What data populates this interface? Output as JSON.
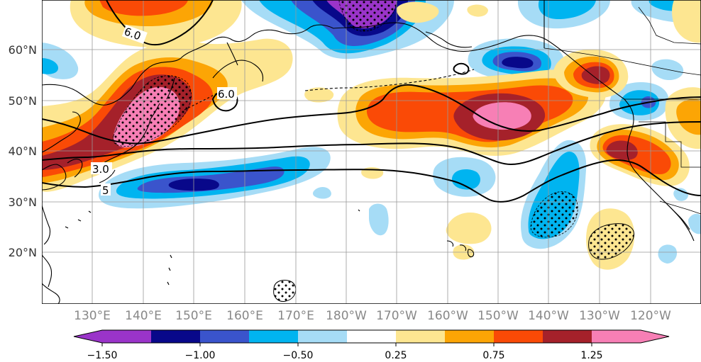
{
  "map": {
    "lat_labels": [
      "60°N",
      "50°N",
      "40°N",
      "30°N",
      "20°N"
    ],
    "lon_labels": [
      "130°E",
      "140°E",
      "150°E",
      "160°E",
      "170°E",
      "180°W",
      "170°W",
      "160°W",
      "150°W",
      "140°W",
      "130°W",
      "120°W"
    ],
    "contour_labels": [
      "6.0",
      "6.0",
      "3.0",
      "5"
    ]
  },
  "colorbar": {
    "colors": [
      "#9a34c9",
      "#08088a",
      "#3a54cc",
      "#00b4f0",
      "#a6dcf6",
      "#ffffff",
      "#fde691",
      "#fca505",
      "#fa4a06",
      "#a5212a",
      "#f77fb5"
    ],
    "tick_labels": [
      "−1.50",
      "−1.00",
      "−0.50",
      "0.25",
      "0.75",
      "1.25"
    ]
  }
}
